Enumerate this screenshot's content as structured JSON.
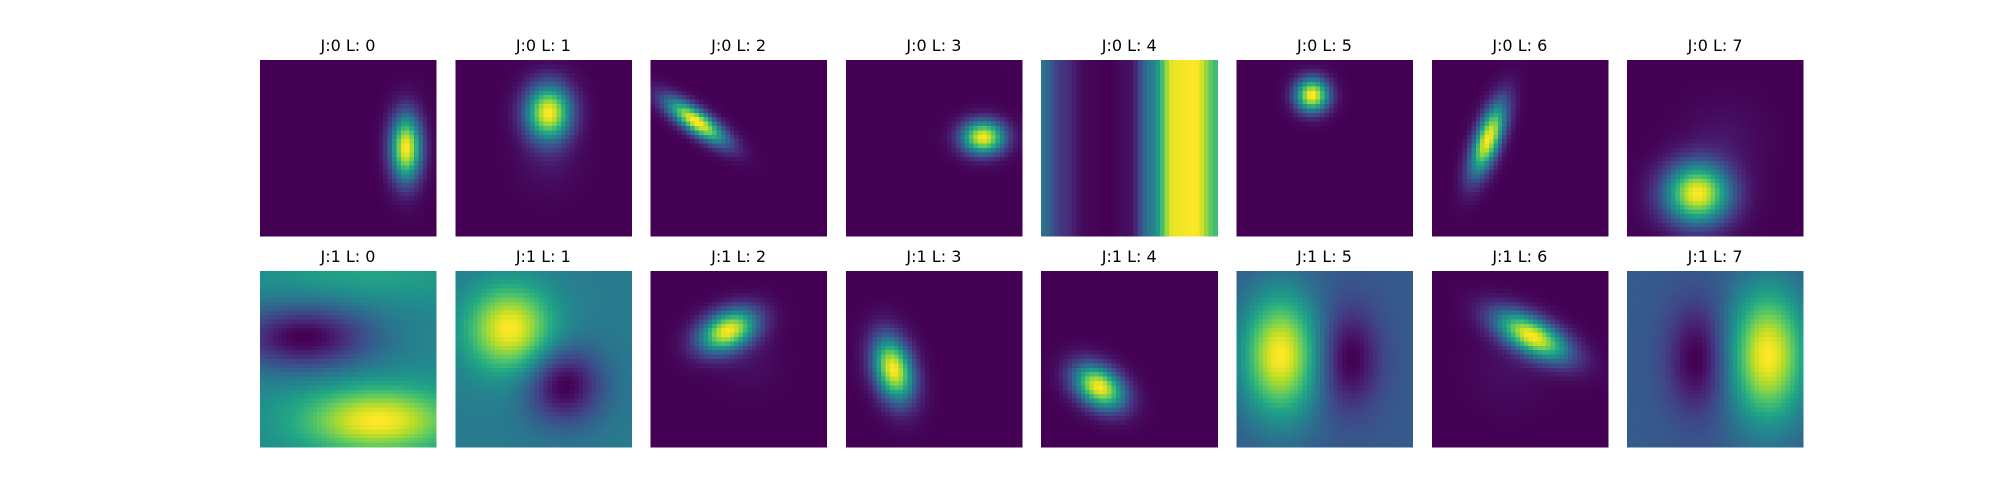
{
  "chart_data": [
    {
      "type": "heatmap",
      "colormap": "viridis",
      "axes": "off",
      "grid": false,
      "rows": 2,
      "cols": 8,
      "panels": [
        {
          "title": "J:0 L: 0",
          "pattern": {
            "kind": "gaussian",
            "cx": 0.83,
            "cy": 0.5,
            "sx": 0.06,
            "sy": 0.13,
            "angle": 0,
            "background": 0.0
          }
        },
        {
          "title": "J:0 L: 1",
          "pattern": {
            "kind": "gaussian",
            "cx": 0.53,
            "cy": 0.3,
            "sx": 0.09,
            "sy": 0.11,
            "angle": 0,
            "background": 0.03,
            "shadow": {
              "cx": 0.53,
              "cy": 0.58,
              "s": 0.12,
              "amp": 0.05
            }
          }
        },
        {
          "title": "J:0 L: 2",
          "pattern": {
            "kind": "gaussian",
            "cx": 0.26,
            "cy": 0.35,
            "sx": 0.14,
            "sy": 0.045,
            "angle": 35,
            "background": 0.0
          }
        },
        {
          "title": "J:0 L: 3",
          "pattern": {
            "kind": "gaussian",
            "cx": 0.78,
            "cy": 0.44,
            "sx": 0.085,
            "sy": 0.065,
            "angle": 0,
            "background": 0.0
          }
        },
        {
          "title": "J:0 L: 4",
          "pattern": {
            "kind": "vbands",
            "profile": [
              0.38,
              0.15,
              0.02,
              0.0,
              0.04,
              0.42,
              0.97,
              1.0,
              0.68
            ]
          }
        },
        {
          "title": "J:0 L: 5",
          "pattern": {
            "kind": "gaussian",
            "cx": 0.43,
            "cy": 0.2,
            "sx": 0.065,
            "sy": 0.065,
            "angle": 0,
            "background": 0.0
          }
        },
        {
          "title": "J:0 L: 6",
          "pattern": {
            "kind": "gaussian",
            "cx": 0.32,
            "cy": 0.45,
            "sx": 0.05,
            "sy": 0.15,
            "angle": 20,
            "background": 0.0
          }
        },
        {
          "title": "J:0 L: 7",
          "pattern": {
            "kind": "gaussian",
            "cx": 0.4,
            "cy": 0.76,
            "sx": 0.13,
            "sy": 0.12,
            "angle": 0,
            "background": 0.03,
            "shadow": {
              "cx": 0.55,
              "cy": 0.45,
              "s": 0.15,
              "amp": 0.05
            }
          }
        },
        {
          "title": "J:1 L: 0",
          "pattern": {
            "kind": "blobs",
            "background": 0.48,
            "blobs": [
              {
                "cx": 0.67,
                "cy": 0.85,
                "sx": 0.3,
                "sy": 0.13,
                "amp": 0.55
              },
              {
                "cx": 0.25,
                "cy": 0.38,
                "sx": 0.28,
                "sy": 0.13,
                "amp": -0.48
              },
              {
                "cx": 0.6,
                "cy": 0.02,
                "sx": 0.4,
                "sy": 0.1,
                "amp": 0.12
              }
            ]
          }
        },
        {
          "title": "J:1 L: 1",
          "pattern": {
            "kind": "blobs",
            "background": 0.42,
            "blobs": [
              {
                "cx": 0.31,
                "cy": 0.33,
                "sx": 0.17,
                "sy": 0.17,
                "amp": 0.58
              },
              {
                "cx": 0.62,
                "cy": 0.65,
                "sx": 0.15,
                "sy": 0.15,
                "amp": -0.42
              }
            ]
          }
        },
        {
          "title": "J:1 L: 2",
          "pattern": {
            "kind": "gaussian",
            "cx": 0.44,
            "cy": 0.34,
            "sx": 0.12,
            "sy": 0.075,
            "angle": -25,
            "background": 0.03,
            "shadow": {
              "cx": 0.56,
              "cy": 0.5,
              "s": 0.12,
              "amp": 0.04
            }
          }
        },
        {
          "title": "J:1 L: 3",
          "pattern": {
            "kind": "gaussian",
            "cx": 0.27,
            "cy": 0.56,
            "sx": 0.075,
            "sy": 0.13,
            "angle": -15,
            "background": 0.0
          }
        },
        {
          "title": "J:1 L: 4",
          "pattern": {
            "kind": "gaussian",
            "cx": 0.33,
            "cy": 0.66,
            "sx": 0.11,
            "sy": 0.075,
            "angle": 35,
            "background": 0.0
          }
        },
        {
          "title": "J:1 L: 5",
          "pattern": {
            "kind": "blobs",
            "background": 0.3,
            "blobs": [
              {
                "cx": 0.25,
                "cy": 0.48,
                "sx": 0.15,
                "sy": 0.24,
                "amp": 0.7
              },
              {
                "cx": 0.64,
                "cy": 0.5,
                "sx": 0.12,
                "sy": 0.2,
                "amp": -0.3
              }
            ]
          }
        },
        {
          "title": "J:1 L: 6",
          "pattern": {
            "kind": "gaussian",
            "cx": 0.57,
            "cy": 0.37,
            "sx": 0.16,
            "sy": 0.07,
            "angle": 28,
            "background": 0.03,
            "shadow": {
              "cx": 0.45,
              "cy": 0.55,
              "s": 0.15,
              "amp": 0.04
            }
          }
        },
        {
          "title": "J:1 L: 7",
          "pattern": {
            "kind": "blobs",
            "background": 0.3,
            "blobs": [
              {
                "cx": 0.8,
                "cy": 0.48,
                "sx": 0.15,
                "sy": 0.26,
                "amp": 0.7
              },
              {
                "cx": 0.4,
                "cy": 0.5,
                "sx": 0.12,
                "sy": 0.22,
                "amp": -0.3
              }
            ]
          }
        }
      ]
    }
  ]
}
